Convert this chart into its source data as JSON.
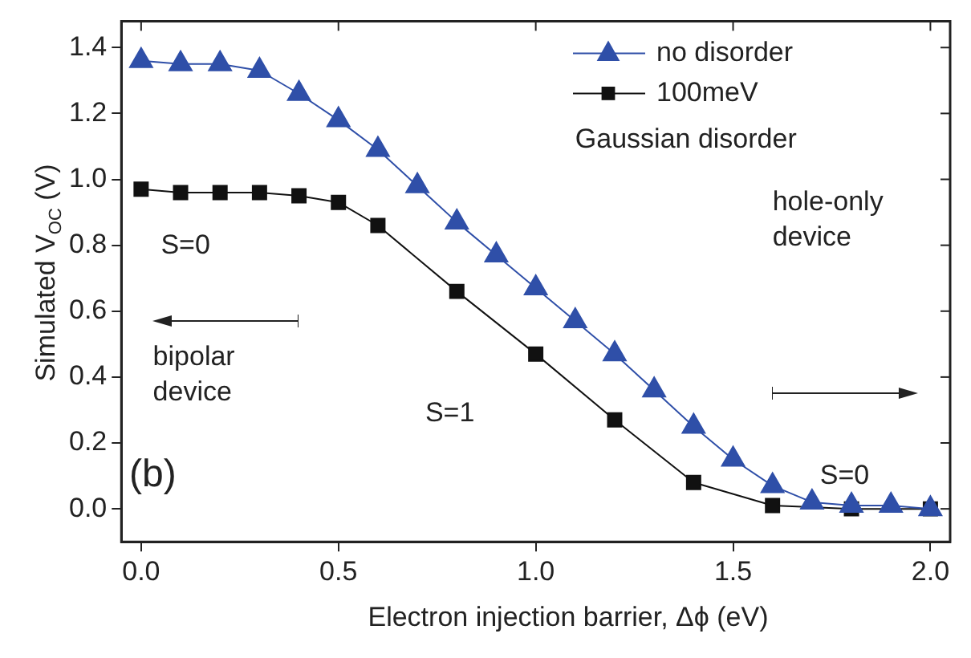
{
  "chart_data": {
    "type": "line",
    "xlabel": "Electron injection barrier, Δϕ (eV)",
    "ylabel": "Simulated V$_{OC}$ (V)",
    "xlim": [
      -0.05,
      2.05
    ],
    "ylim": [
      -0.1,
      1.48
    ],
    "xticks": [
      {
        "value": 0,
        "label": "0.0"
      },
      {
        "value": 0.5,
        "label": "0.5"
      },
      {
        "value": 1,
        "label": "1.0"
      },
      {
        "value": 1.5,
        "label": "1.5"
      },
      {
        "value": 2,
        "label": "2.0"
      }
    ],
    "yticks": [
      {
        "value": 0,
        "label": "0.0"
      },
      {
        "value": 0.2,
        "label": "0.2"
      },
      {
        "value": 0.4,
        "label": "0.4"
      },
      {
        "value": 0.6,
        "label": "0.6"
      },
      {
        "value": 0.8,
        "label": "0.8"
      },
      {
        "value": 1,
        "label": "1.0"
      },
      {
        "value": 1.2,
        "label": "1.2"
      },
      {
        "value": 1.4,
        "label": "1.4"
      }
    ],
    "legend": "top right",
    "grid": false,
    "series": [
      {
        "name": "no disorder",
        "color": "#2f4fa8",
        "marker": "triangle",
        "x": [
          0,
          0.1,
          0.2,
          0.3,
          0.4,
          0.5,
          0.6,
          0.7,
          0.8,
          0.9,
          1.0,
          1.1,
          1.2,
          1.3,
          1.4,
          1.5,
          1.6,
          1.7,
          1.8,
          1.9,
          2.0
        ],
        "values": [
          1.36,
          1.35,
          1.35,
          1.33,
          1.26,
          1.18,
          1.09,
          0.98,
          0.87,
          0.77,
          0.67,
          0.57,
          0.47,
          0.36,
          0.25,
          0.15,
          0.07,
          0.02,
          0.01,
          0.01,
          0.0
        ]
      },
      {
        "name": "100meV",
        "color": "#111111",
        "marker": "square",
        "x": [
          0,
          0.1,
          0.2,
          0.3,
          0.4,
          0.5,
          0.6,
          0.8,
          1.0,
          1.2,
          1.4,
          1.6,
          1.8,
          2.0
        ],
        "values": [
          0.97,
          0.96,
          0.96,
          0.96,
          0.95,
          0.93,
          0.86,
          0.66,
          0.47,
          0.27,
          0.08,
          0.01,
          0.0,
          0.0
        ]
      }
    ],
    "annotations": [
      "Gaussian disorder",
      "(b)",
      "S=0",
      "bipolar device",
      "S=1",
      "hole-only device",
      "S=0"
    ]
  }
}
